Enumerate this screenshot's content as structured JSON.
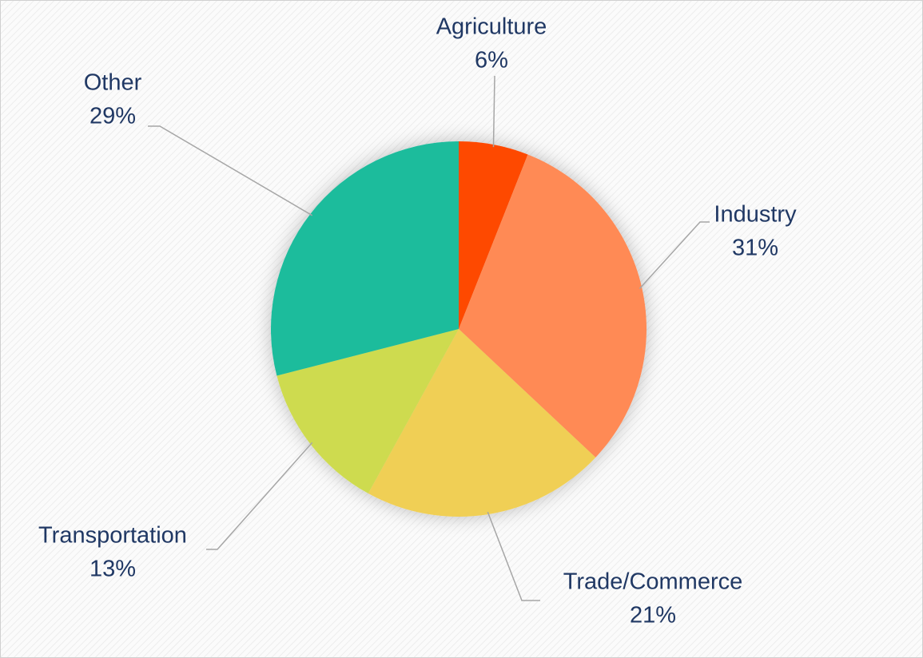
{
  "chart_data": {
    "type": "pie",
    "categories": [
      "Agriculture",
      "Industry",
      "Trade/Commerce",
      "Transportation",
      "Other"
    ],
    "values": [
      6,
      31,
      21,
      13,
      29
    ],
    "value_labels": [
      "6%",
      "31%",
      "21%",
      "13%",
      "29%"
    ],
    "colors": [
      "#fe4a01",
      "#ff8a55",
      "#f0cf55",
      "#cedb50",
      "#1abc9c"
    ]
  }
}
